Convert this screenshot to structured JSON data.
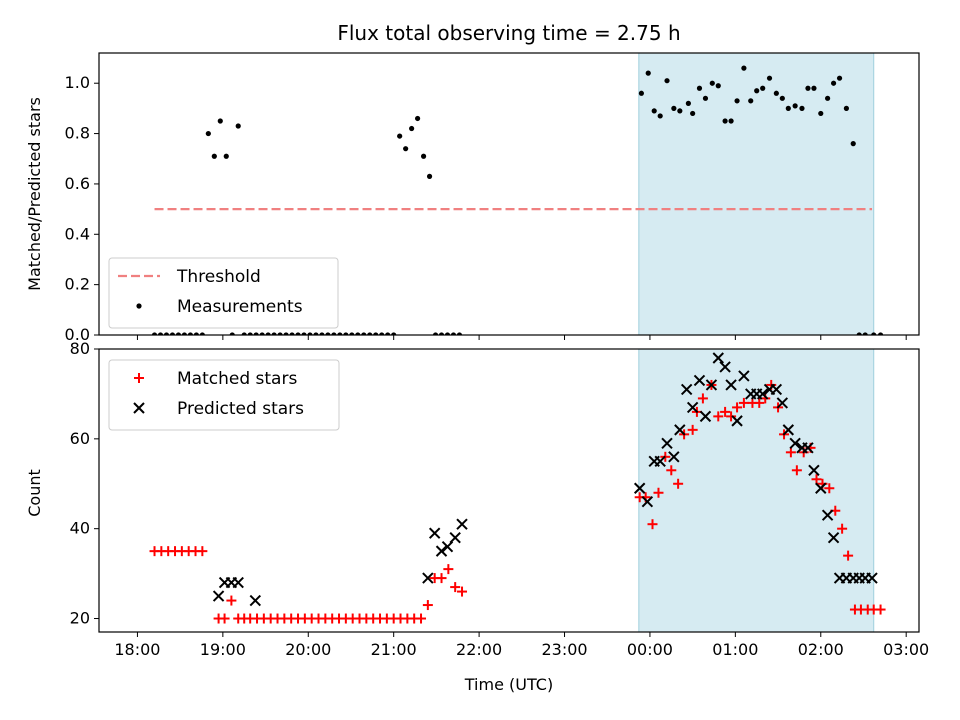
{
  "chart_data": [
    {
      "type": "scatter",
      "title": "Flux total observing time = 2.75 h",
      "xlabel": "",
      "ylabel": "Matched/Predicted stars",
      "xlim": [
        -0.45,
        9.15
      ],
      "ylim": [
        0,
        1.12
      ],
      "yticks": [
        "0.0",
        "0.2",
        "0.4",
        "0.6",
        "0.8",
        "1.0"
      ],
      "yticks_values": [
        0,
        0.2,
        0.4,
        0.6,
        0.8,
        1.0
      ],
      "shaded_x_range": [
        5.87,
        8.62
      ],
      "legend_position": "lower-left",
      "threshold": {
        "name": "Threshold",
        "y": 0.5,
        "x_start": 0.2,
        "x_end": 8.6,
        "color": "#f08080"
      },
      "series": [
        {
          "name": "Measurements",
          "color": "#000000",
          "x": [
            0.2,
            0.27,
            0.34,
            0.41,
            0.48,
            0.55,
            0.62,
            0.69,
            0.76,
            0.83,
            0.9,
            0.97,
            1.04,
            1.11,
            1.18,
            1.25,
            1.32,
            1.39,
            1.46,
            1.53,
            1.6,
            1.67,
            1.74,
            1.81,
            1.88,
            1.95,
            2.02,
            2.09,
            2.16,
            2.23,
            2.3,
            2.37,
            2.44,
            2.51,
            2.58,
            2.65,
            2.72,
            2.79,
            2.86,
            2.93,
            3.0,
            3.07,
            3.14,
            3.21,
            3.28,
            3.35,
            3.42,
            3.49,
            3.56,
            3.63,
            3.7,
            3.77,
            5.9,
            5.98,
            6.05,
            6.12,
            6.2,
            6.28,
            6.35,
            6.45,
            6.5,
            6.58,
            6.65,
            6.73,
            6.8,
            6.88,
            6.95,
            7.02,
            7.1,
            7.18,
            7.25,
            7.32,
            7.4,
            7.48,
            7.55,
            7.62,
            7.7,
            7.78,
            7.85,
            7.92,
            8.0,
            8.08,
            8.15,
            8.22,
            8.3,
            8.38,
            8.45,
            8.52,
            8.62,
            8.7
          ],
          "y": [
            0,
            0,
            0,
            0,
            0,
            0,
            0,
            0,
            0,
            0.8,
            0.71,
            0.85,
            0.71,
            0,
            0.83,
            0,
            0,
            0,
            0,
            0,
            0,
            0,
            0,
            0,
            0,
            0,
            0,
            0,
            0,
            0,
            0,
            0,
            0,
            0,
            0,
            0,
            0,
            0,
            0,
            0,
            0,
            0.79,
            0.74,
            0.82,
            0.86,
            0.71,
            0.63,
            0,
            0,
            0,
            0,
            0,
            0.96,
            1.04,
            0.89,
            0.87,
            1.01,
            0.9,
            0.89,
            0.92,
            0.88,
            0.98,
            0.94,
            1.0,
            0.99,
            0.85,
            0.85,
            0.93,
            1.06,
            0.93,
            0.97,
            0.98,
            1.02,
            0.96,
            0.94,
            0.9,
            0.91,
            0.9,
            0.98,
            0.98,
            0.88,
            0.94,
            1.0,
            1.02,
            0.9,
            0.76,
            0.0,
            0.0,
            0.0,
            0.0
          ]
        }
      ]
    },
    {
      "type": "scatter",
      "title": "",
      "xlabel": "Time (UTC)",
      "ylabel": "Count",
      "xlim": [
        -0.45,
        9.15
      ],
      "ylim": [
        17,
        80
      ],
      "xticks": [
        "18:00",
        "19:00",
        "20:00",
        "21:00",
        "22:00",
        "23:00",
        "00:00",
        "01:00",
        "02:00",
        "03:00"
      ],
      "xticks_values": [
        0,
        1,
        2,
        3,
        4,
        5,
        6,
        7,
        8,
        9
      ],
      "yticks": [
        "20",
        "40",
        "60",
        "80"
      ],
      "yticks_values": [
        20,
        40,
        60,
        80
      ],
      "shaded_x_range": [
        5.87,
        8.62
      ],
      "legend_position": "upper-left",
      "series": [
        {
          "name": "Matched stars",
          "color": "#ff0000",
          "marker": "plus",
          "x": [
            0.2,
            0.28,
            0.36,
            0.44,
            0.52,
            0.6,
            0.68,
            0.76,
            0.95,
            1.02,
            1.1,
            1.18,
            1.25,
            1.32,
            1.4,
            1.48,
            1.56,
            1.64,
            1.72,
            1.8,
            1.88,
            1.96,
            2.04,
            2.12,
            2.2,
            2.28,
            2.36,
            2.44,
            2.52,
            2.6,
            2.68,
            2.76,
            2.84,
            2.92,
            3.0,
            3.08,
            3.16,
            3.24,
            3.32,
            3.4,
            3.48,
            3.56,
            3.64,
            3.72,
            3.8,
            5.88,
            5.95,
            6.03,
            6.1,
            6.18,
            6.25,
            6.33,
            6.4,
            6.5,
            6.55,
            6.62,
            6.72,
            6.8,
            6.88,
            6.95,
            7.02,
            7.1,
            7.2,
            7.28,
            7.35,
            7.42,
            7.5,
            7.57,
            7.65,
            7.72,
            7.8,
            7.88,
            7.95,
            8.02,
            8.1,
            8.17,
            8.25,
            8.32,
            8.4,
            8.47,
            8.55,
            8.62,
            8.7
          ],
          "y": [
            35,
            35,
            35,
            35,
            35,
            35,
            35,
            35,
            20,
            20,
            24,
            20,
            20,
            20,
            20,
            20,
            20,
            20,
            20,
            20,
            20,
            20,
            20,
            20,
            20,
            20,
            20,
            20,
            20,
            20,
            20,
            20,
            20,
            20,
            20,
            20,
            20,
            20,
            20,
            23,
            29,
            29,
            31,
            27,
            26,
            47,
            47,
            41,
            48,
            56,
            53,
            50,
            61,
            62,
            66,
            69,
            72,
            65,
            66,
            65,
            67,
            68,
            68,
            68,
            69,
            72,
            67,
            61,
            57,
            53,
            57,
            58,
            51,
            50,
            49,
            44,
            40,
            34,
            22,
            22,
            22,
            22,
            22
          ],
          "x_count_note": ""
        },
        {
          "name": "Predicted stars",
          "color": "#000000",
          "marker": "x",
          "x": [
            0.95,
            1.02,
            1.1,
            1.18,
            1.38,
            3.4,
            3.48,
            3.56,
            3.63,
            3.72,
            3.8,
            5.88,
            5.97,
            6.05,
            6.12,
            6.2,
            6.28,
            6.35,
            6.43,
            6.5,
            6.58,
            6.65,
            6.72,
            6.8,
            6.88,
            6.95,
            7.02,
            7.1,
            7.18,
            7.25,
            7.32,
            7.4,
            7.48,
            7.55,
            7.62,
            7.7,
            7.78,
            7.85,
            7.92,
            8.0,
            8.08,
            8.15,
            8.22,
            8.3,
            8.38,
            8.45,
            8.52,
            8.6
          ],
          "y": [
            25,
            28,
            28,
            28,
            24,
            29,
            39,
            35,
            36,
            38,
            41,
            49,
            46,
            55,
            55,
            59,
            56,
            62,
            71,
            67,
            73,
            65,
            72,
            78,
            76,
            72,
            64,
            74,
            70,
            70,
            70,
            71,
            71,
            68,
            62,
            59,
            58,
            58,
            53,
            49,
            43,
            38,
            29,
            29,
            29,
            29,
            29,
            29
          ]
        }
      ]
    }
  ]
}
